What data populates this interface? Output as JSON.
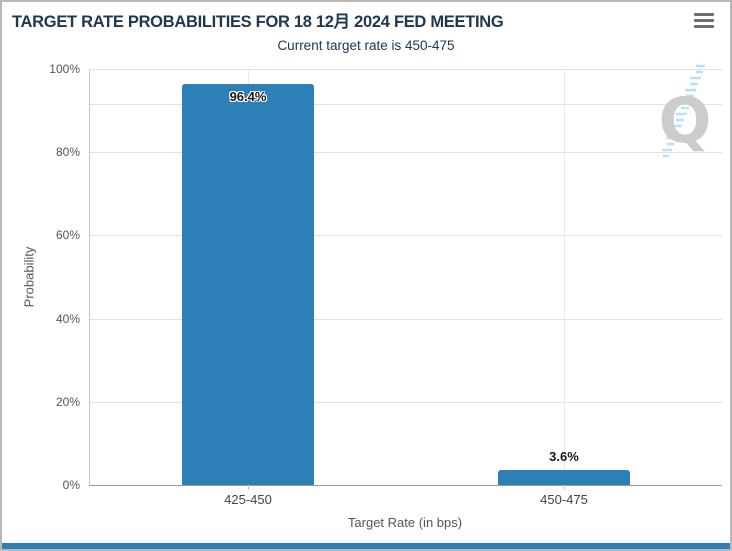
{
  "window": {
    "border_color": "#b9b9b9",
    "background": "#ffffff",
    "bottom_accent_color": "#2e7fb7"
  },
  "header": {
    "menu_icon": "hamburger-icon"
  },
  "chart_data": {
    "type": "bar",
    "title": "TARGET RATE PROBABILITIES FOR 18 12月 2024 FED MEETING",
    "subtitle": "Current target rate is 450-475",
    "categories": [
      "425-450",
      "450-475"
    ],
    "values": [
      96.4,
      3.6
    ],
    "value_labels": [
      "96.4%",
      "3.6%"
    ],
    "xlabel": "Target Rate (in bps)",
    "ylabel": "Probability",
    "ylim": [
      0,
      100
    ],
    "y_ticks": [
      {
        "label": "0%",
        "value": 0
      },
      {
        "label": "20%",
        "value": 20
      },
      {
        "label": "40%",
        "value": 40
      },
      {
        "label": "60%",
        "value": 60
      },
      {
        "label": "80%",
        "value": 80
      },
      {
        "label": "100%",
        "value": 100
      }
    ],
    "extra_gridline_value": 91.5,
    "grid": true,
    "legend": "none",
    "bar_color": "#2d7fb8",
    "title_color": "#20384f",
    "watermark_letter": "Q"
  }
}
